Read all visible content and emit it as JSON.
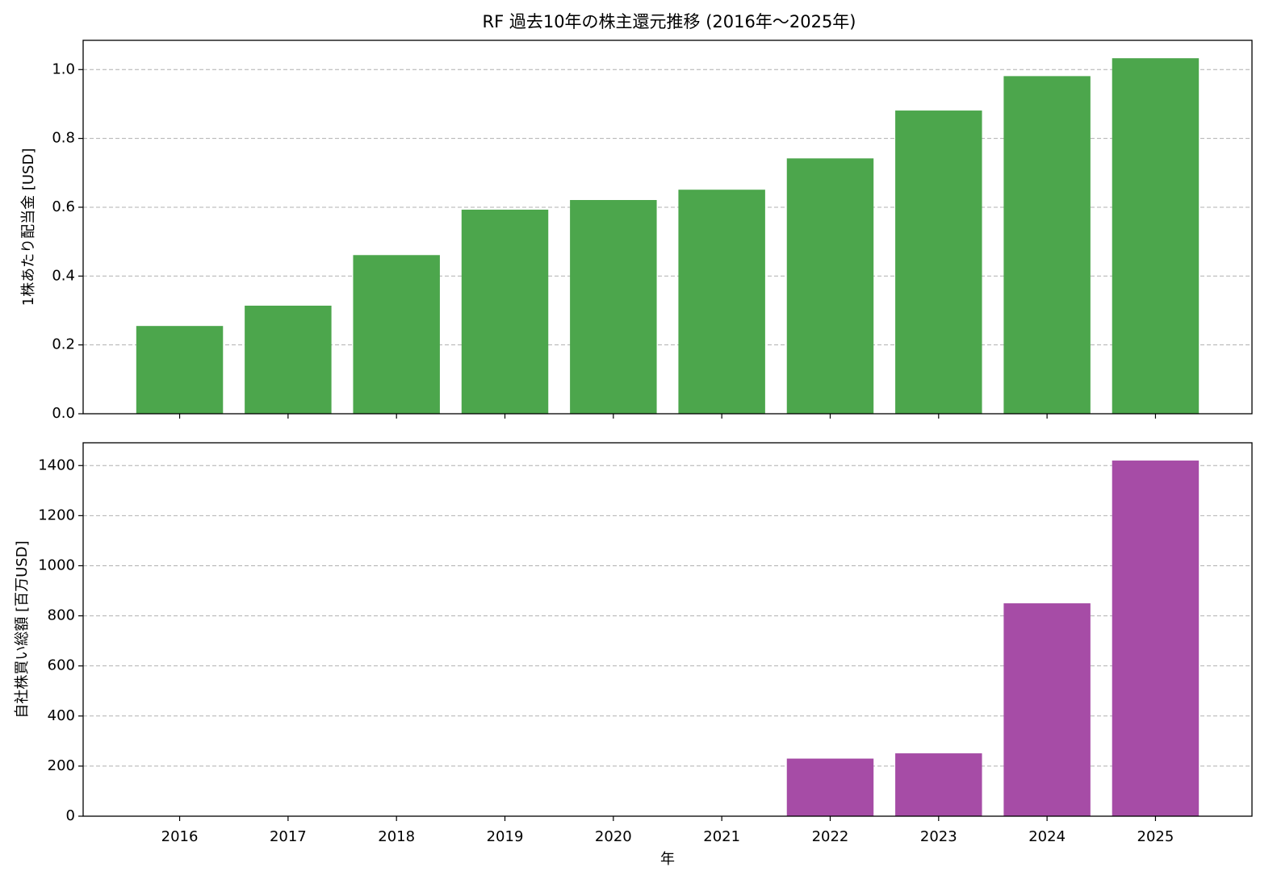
{
  "chart_data": [
    {
      "type": "bar",
      "title": "RF 過去10年の株主還元推移 (2016年～2025年)",
      "ylabel": "1株あたり配当金 [USD]",
      "values": [
        0.255,
        0.314,
        0.461,
        0.593,
        0.621,
        0.651,
        0.742,
        0.881,
        0.981,
        1.033
      ],
      "color": "#4ca64c",
      "ylim": [
        0,
        1.085
      ],
      "yticks": [
        {
          "value": 0,
          "label": "0.0"
        },
        0.2,
        0.4,
        0.6,
        0.8,
        {
          "value": 1,
          "label": "1.0"
        }
      ],
      "grid": true
    },
    {
      "type": "bar",
      "ylabel": "自社株買い総額 [百万USD]",
      "xlabel": "年",
      "categories": [
        "2016",
        "2017",
        "2018",
        "2019",
        "2020",
        "2021",
        "2022",
        "2023",
        "2024",
        "2025"
      ],
      "values": [
        0,
        0,
        0,
        0,
        0,
        0,
        230,
        251,
        850,
        1420
      ],
      "color": "#a64ca6",
      "ylim": [
        0,
        1491
      ],
      "yticks": [
        0,
        200,
        400,
        600,
        800,
        1000,
        1200,
        1400
      ],
      "grid": true
    }
  ]
}
